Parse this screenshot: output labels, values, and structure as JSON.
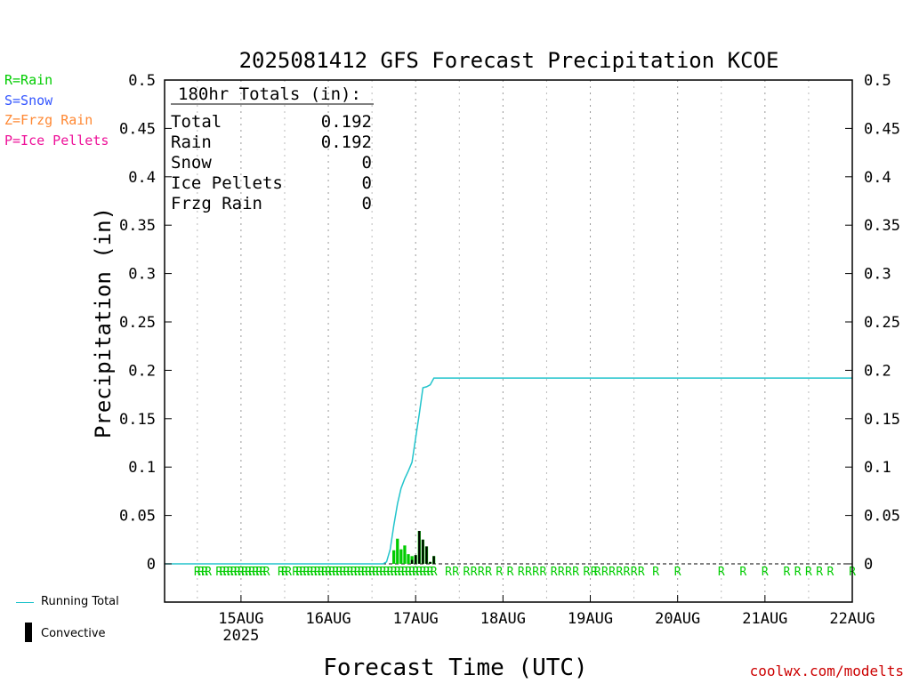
{
  "legend_keys": [
    {
      "text": "R=Rain",
      "color": "#00cc00"
    },
    {
      "text": "S=Snow",
      "color": "#3355ff"
    },
    {
      "text": "Z=Frzg Rain",
      "color": "#ff8833"
    },
    {
      "text": "P=Ice Pellets",
      "color": "#ee1199"
    }
  ],
  "bottom_legend": {
    "running_total_label": "Running Total",
    "convective_label": "Convective",
    "running_total_color": "#22c4cc",
    "convective_color": "#000000"
  },
  "totals_box": {
    "title": "180hr Totals (in):",
    "rows": [
      {
        "label": "Total",
        "value": "0.192"
      },
      {
        "label": "Rain",
        "value": "0.192"
      },
      {
        "label": "Snow",
        "value": "0"
      },
      {
        "label": "Ice Pellets",
        "value": "0"
      },
      {
        "label": "Frzg Rain",
        "value": "0"
      }
    ]
  },
  "credit": "coolwx.com/modelts",
  "chart_data": {
    "type": "bar",
    "title": "2025081412 GFS Forecast Precipitation KCOE",
    "xlabel": "Forecast Time (UTC)",
    "ylabel": "Precipitation (in)",
    "ylim": [
      0,
      0.5
    ],
    "yticks": [
      "0",
      "0.05",
      "0.1",
      "0.15",
      "0.2",
      "0.25",
      "0.3",
      "0.35",
      "0.4",
      "0.45",
      "0.5"
    ],
    "xticks": [
      {
        "label": "15AUG",
        "sub": "2025"
      },
      {
        "label": "16AUG",
        "sub": ""
      },
      {
        "label": "17AUG",
        "sub": ""
      },
      {
        "label": "18AUG",
        "sub": ""
      },
      {
        "label": "19AUG",
        "sub": ""
      },
      {
        "label": "20AUG",
        "sub": ""
      },
      {
        "label": "21AUG",
        "sub": ""
      },
      {
        "label": "22AUG",
        "sub": ""
      }
    ],
    "xlim_hours": [
      -9,
      180
    ],
    "rain_color": "#00cc00",
    "convective_color": "#000000",
    "running_total_color": "#22c4cc",
    "precip_bars": [
      {
        "h": 54,
        "total": 0.014,
        "convective": 0.0
      },
      {
        "h": 55,
        "total": 0.026,
        "convective": 0.0
      },
      {
        "h": 56,
        "total": 0.015,
        "convective": 0.0
      },
      {
        "h": 57,
        "total": 0.019,
        "convective": 0.0
      },
      {
        "h": 58,
        "total": 0.01,
        "convective": 0.0
      },
      {
        "h": 59,
        "total": 0.008,
        "convective": 0.004
      },
      {
        "h": 60,
        "total": 0.009,
        "convective": 0.009
      },
      {
        "h": 61,
        "total": 0.034,
        "convective": 0.034
      },
      {
        "h": 62,
        "total": 0.025,
        "convective": 0.025
      },
      {
        "h": 63,
        "total": 0.018,
        "convective": 0.018
      },
      {
        "h": 64,
        "total": 0.002,
        "convective": 0.002
      },
      {
        "h": 65,
        "total": 0.008,
        "convective": 0.008
      }
    ],
    "running_total": [
      [
        -9,
        0
      ],
      [
        51,
        0
      ],
      [
        52,
        0.002
      ],
      [
        53,
        0.015
      ],
      [
        54,
        0.04
      ],
      [
        55,
        0.062
      ],
      [
        56,
        0.078
      ],
      [
        57,
        0.088
      ],
      [
        58,
        0.096
      ],
      [
        59,
        0.105
      ],
      [
        60,
        0.13
      ],
      [
        61,
        0.155
      ],
      [
        62,
        0.182
      ],
      [
        63,
        0.183
      ],
      [
        64,
        0.185
      ],
      [
        65,
        0.192
      ],
      [
        180,
        0.192
      ]
    ],
    "ptype_marks": [
      {
        "h": 0,
        "t": "R"
      },
      {
        "h": 1,
        "t": "R"
      },
      {
        "h": 2,
        "t": "R"
      },
      {
        "h": 3,
        "t": "R"
      },
      {
        "h": 6,
        "t": "R"
      },
      {
        "h": 7,
        "t": "R"
      },
      {
        "h": 8,
        "t": "R"
      },
      {
        "h": 9,
        "t": "R"
      },
      {
        "h": 10,
        "t": "R"
      },
      {
        "h": 11,
        "t": "R"
      },
      {
        "h": 12,
        "t": "R"
      },
      {
        "h": 13,
        "t": "R"
      },
      {
        "h": 14,
        "t": "R"
      },
      {
        "h": 15,
        "t": "R"
      },
      {
        "h": 16,
        "t": "R"
      },
      {
        "h": 17,
        "t": "R"
      },
      {
        "h": 18,
        "t": "R"
      },
      {
        "h": 19,
        "t": "R"
      },
      {
        "h": 23,
        "t": "R"
      },
      {
        "h": 24,
        "t": "R"
      },
      {
        "h": 25,
        "t": "R"
      },
      {
        "h": 27,
        "t": "R"
      },
      {
        "h": 28,
        "t": "R"
      },
      {
        "h": 29,
        "t": "R"
      },
      {
        "h": 30,
        "t": "R"
      },
      {
        "h": 31,
        "t": "R"
      },
      {
        "h": 32,
        "t": "R"
      },
      {
        "h": 33,
        "t": "R"
      },
      {
        "h": 34,
        "t": "R"
      },
      {
        "h": 35,
        "t": "R"
      },
      {
        "h": 36,
        "t": "R"
      },
      {
        "h": 37,
        "t": "R"
      },
      {
        "h": 38,
        "t": "R"
      },
      {
        "h": 39,
        "t": "R"
      },
      {
        "h": 40,
        "t": "R"
      },
      {
        "h": 41,
        "t": "R"
      },
      {
        "h": 42,
        "t": "R"
      },
      {
        "h": 43,
        "t": "R"
      },
      {
        "h": 44,
        "t": "R"
      },
      {
        "h": 45,
        "t": "R"
      },
      {
        "h": 46,
        "t": "R"
      },
      {
        "h": 47,
        "t": "R"
      },
      {
        "h": 48,
        "t": "R"
      },
      {
        "h": 49,
        "t": "R"
      },
      {
        "h": 50,
        "t": "R"
      },
      {
        "h": 51,
        "t": "R"
      },
      {
        "h": 52,
        "t": "R"
      },
      {
        "h": 53,
        "t": "R"
      },
      {
        "h": 54,
        "t": "R"
      },
      {
        "h": 55,
        "t": "R"
      },
      {
        "h": 56,
        "t": "R"
      },
      {
        "h": 57,
        "t": "R"
      },
      {
        "h": 58,
        "t": "R"
      },
      {
        "h": 59,
        "t": "R"
      },
      {
        "h": 60,
        "t": "R"
      },
      {
        "h": 61,
        "t": "R"
      },
      {
        "h": 62,
        "t": "R"
      },
      {
        "h": 63,
        "t": "R"
      },
      {
        "h": 64,
        "t": "R"
      },
      {
        "h": 65,
        "t": "R"
      },
      {
        "h": 69,
        "t": "R"
      },
      {
        "h": 71,
        "t": "R"
      },
      {
        "h": 74,
        "t": "R"
      },
      {
        "h": 76,
        "t": "R"
      },
      {
        "h": 78,
        "t": "R"
      },
      {
        "h": 80,
        "t": "R"
      },
      {
        "h": 83,
        "t": "R"
      },
      {
        "h": 86,
        "t": "R"
      },
      {
        "h": 89,
        "t": "R"
      },
      {
        "h": 91,
        "t": "R"
      },
      {
        "h": 93,
        "t": "R"
      },
      {
        "h": 95,
        "t": "R"
      },
      {
        "h": 98,
        "t": "R"
      },
      {
        "h": 100,
        "t": "R"
      },
      {
        "h": 102,
        "t": "R"
      },
      {
        "h": 104,
        "t": "R"
      },
      {
        "h": 107,
        "t": "R"
      },
      {
        "h": 109,
        "t": "R"
      },
      {
        "h": 110,
        "t": "R"
      },
      {
        "h": 112,
        "t": "R"
      },
      {
        "h": 114,
        "t": "R"
      },
      {
        "h": 116,
        "t": "R"
      },
      {
        "h": 118,
        "t": "R"
      },
      {
        "h": 120,
        "t": "R"
      },
      {
        "h": 122,
        "t": "R"
      },
      {
        "h": 126,
        "t": "R"
      },
      {
        "h": 132,
        "t": "R"
      },
      {
        "h": 144,
        "t": "R"
      },
      {
        "h": 150,
        "t": "R"
      },
      {
        "h": 156,
        "t": "R"
      },
      {
        "h": 162,
        "t": "R"
      },
      {
        "h": 165,
        "t": "R"
      },
      {
        "h": 168,
        "t": "R"
      },
      {
        "h": 171,
        "t": "R"
      },
      {
        "h": 174,
        "t": "R"
      },
      {
        "h": 180,
        "t": "R"
      }
    ]
  }
}
